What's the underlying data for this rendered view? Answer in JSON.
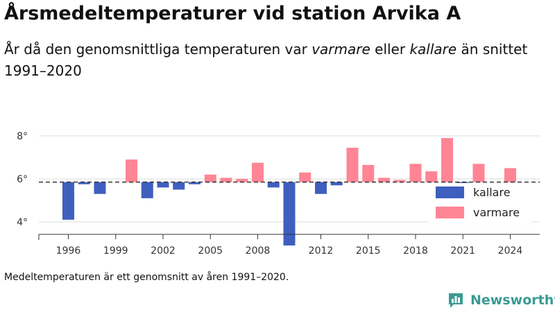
{
  "title": "Årsmedeltemperaturer vid station Arvika A",
  "subtitle": {
    "part1": "År då den genomsnittliga temperaturen var ",
    "warm_word": "varmare",
    "part2": " eller ",
    "cold_word": "kallare",
    "part3": " än snittet 1991–2020"
  },
  "note": "Medeltemperaturen är ett genomsnitt av åren 1991–2020.",
  "brand": {
    "name": "Newsworthy",
    "icon": "newsworthy-logo-icon"
  },
  "colors": {
    "kallare": "#3f5fbf",
    "varmare": "#ff8594",
    "grid": "#dddddd",
    "axis": "#333333"
  },
  "chart_data": {
    "type": "bar",
    "baseline": 5.85,
    "baseline_style": "dashed",
    "ylim": [
      2.8,
      8.4
    ],
    "yticks": [
      4,
      6,
      8
    ],
    "ytick_labels": [
      "4°",
      "6°",
      "8°"
    ],
    "xticks": [
      1996,
      1999,
      2002,
      2005,
      2008,
      2012,
      2015,
      2018,
      2021,
      2024
    ],
    "xtick_labels": [
      "1996",
      "1999",
      "2002",
      "2005",
      "2008",
      "2012",
      "2015",
      "2018",
      "2021",
      "2024"
    ],
    "grid": true,
    "legend": {
      "position": "right",
      "items": [
        {
          "key": "kallare",
          "label": "kallare"
        },
        {
          "key": "varmare",
          "label": "varmare"
        }
      ]
    },
    "years": [
      1996,
      1997,
      1998,
      1999,
      2000,
      2001,
      2002,
      2003,
      2004,
      2005,
      2006,
      2007,
      2008,
      2009,
      2010,
      2011,
      2012,
      2013,
      2014,
      2015,
      2016,
      2017,
      2018,
      2019,
      2020,
      2021,
      2022,
      2023,
      2024
    ],
    "values": [
      4.1,
      5.75,
      5.3,
      null,
      6.9,
      5.1,
      5.6,
      5.5,
      5.75,
      6.2,
      6.05,
      6.0,
      6.75,
      5.6,
      2.9,
      6.3,
      5.3,
      5.7,
      7.45,
      6.65,
      6.05,
      5.95,
      6.7,
      6.35,
      7.9,
      5.8,
      6.7,
      null,
      6.5
    ]
  }
}
